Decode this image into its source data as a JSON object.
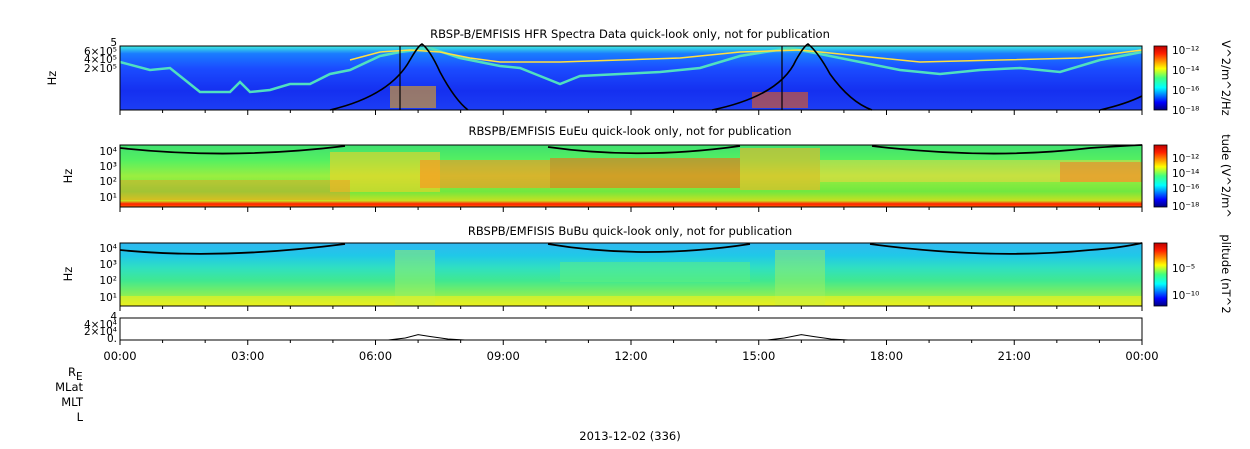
{
  "chart_data": [
    {
      "type": "heatmap",
      "title": "RBSP-B/EMFISIS  HFR Spectra Data quick-look only, not for publication",
      "ylabel": "Hz",
      "yticks": [
        "2×10⁵",
        "4×10⁵",
        "6×10⁵"
      ],
      "ytop_label": "5",
      "colorbar": {
        "label": "V^2/m^2/Hz",
        "ticks": [
          "10⁻¹²",
          "10⁻¹⁴",
          "10⁻¹⁶",
          "10⁻¹⁸"
        ]
      }
    },
    {
      "type": "heatmap",
      "title": "RBSPB/EMFISIS  EuEu quick-look only, not for publication",
      "ylabel": "Hz",
      "yticks": [
        "10⁴",
        "10³",
        "10²",
        "10¹"
      ],
      "colorbar": {
        "label": "tude (V^2/m^",
        "ticks": [
          "10⁻¹²",
          "10⁻¹⁴",
          "10⁻¹⁶",
          "10⁻¹⁸"
        ]
      }
    },
    {
      "type": "heatmap",
      "title": "RBSPB/EMFISIS  BuBu quick-look only, not for publication",
      "ylabel": "Hz",
      "yticks": [
        "10⁴",
        "10³",
        "10²",
        "10¹"
      ],
      "colorbar": {
        "label": "plitude (nT^2",
        "ticks": [
          "10⁻⁵",
          "10⁻¹⁰"
        ]
      }
    },
    {
      "type": "line",
      "yticks": [
        "4×10⁴",
        "2×10⁴",
        "0."
      ],
      "ytop_label": "4",
      "x_hours": [
        0,
        6.3,
        6.7,
        7.0,
        7.3,
        7.7,
        8.1,
        15.2,
        15.6,
        16.0,
        16.3,
        16.7,
        17.1,
        24
      ],
      "y_values": [
        0,
        0,
        4000,
        11000,
        7000,
        2000,
        0,
        0,
        4000,
        11000,
        7000,
        2000,
        0,
        0
      ],
      "ylim": [
        0,
        45000
      ]
    }
  ],
  "x_axis": {
    "tick_labels": [
      "00:00",
      "03:00",
      "06:00",
      "09:00",
      "12:00",
      "15:00",
      "18:00",
      "21:00",
      "00:00"
    ],
    "row_labels": [
      "R",
      "MLat",
      "MLT",
      "L"
    ],
    "r_subscript": "E",
    "date_label": "2013-12-02 (336)"
  }
}
